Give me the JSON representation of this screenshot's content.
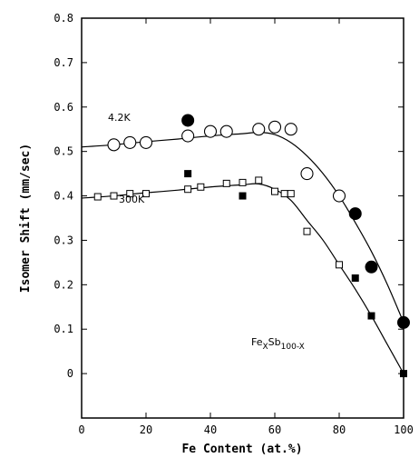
{
  "chart_data": {
    "type": "scatter",
    "title": "",
    "xlabel": "Fe Content (at.%)",
    "ylabel": "Isomer Shift (mm/sec)",
    "xlim": [
      0,
      100
    ],
    "ylim": [
      -0.1,
      0.8
    ],
    "x_ticks": [
      "0",
      "20",
      "40",
      "60",
      "80",
      "100"
    ],
    "y_ticks": [
      "0",
      "0.1",
      "0.2",
      "0.3",
      "0.4",
      "0.5",
      "0.6",
      "0.7",
      "0.8"
    ],
    "grid": false,
    "annotations": {
      "series_4k2": "4.2K",
      "series_300k": "300K",
      "formula_base1": "Fe",
      "formula_sub1": "X",
      "formula_base2": "Sb",
      "formula_sub2": "100-X"
    },
    "series": [
      {
        "name": "4.2K",
        "marker": "open-circle",
        "points": [
          [
            10,
            0.515
          ],
          [
            15,
            0.52
          ],
          [
            20,
            0.52
          ],
          [
            33,
            0.535
          ],
          [
            40,
            0.545
          ],
          [
            45,
            0.545
          ],
          [
            55,
            0.55
          ],
          [
            60,
            0.555
          ],
          [
            65,
            0.55
          ],
          [
            70,
            0.45
          ],
          [
            80,
            0.4
          ]
        ]
      },
      {
        "name": "4.2K",
        "marker": "filled-circle",
        "points": [
          [
            33,
            0.57
          ],
          [
            85,
            0.36
          ],
          [
            90,
            0.24
          ],
          [
            100,
            0.115
          ]
        ]
      },
      {
        "name": "300K",
        "marker": "open-square",
        "points": [
          [
            5,
            0.398
          ],
          [
            10,
            0.4
          ],
          [
            15,
            0.405
          ],
          [
            20,
            0.405
          ],
          [
            33,
            0.415
          ],
          [
            37,
            0.42
          ],
          [
            45,
            0.428
          ],
          [
            50,
            0.43
          ],
          [
            55,
            0.435
          ],
          [
            60,
            0.41
          ],
          [
            63,
            0.405
          ],
          [
            65,
            0.405
          ],
          [
            70,
            0.32
          ],
          [
            80,
            0.245
          ]
        ]
      },
      {
        "name": "300K",
        "marker": "filled-square",
        "points": [
          [
            33,
            0.45
          ],
          [
            50,
            0.4
          ],
          [
            85,
            0.215
          ],
          [
            90,
            0.13
          ],
          [
            100,
            0.0
          ]
        ]
      }
    ],
    "fit_curves": [
      {
        "name": "4.2K",
        "points": [
          [
            0,
            0.51
          ],
          [
            10,
            0.515
          ],
          [
            20,
            0.522
          ],
          [
            30,
            0.528
          ],
          [
            40,
            0.535
          ],
          [
            50,
            0.54
          ],
          [
            55,
            0.543
          ],
          [
            60,
            0.538
          ],
          [
            65,
            0.52
          ],
          [
            70,
            0.49
          ],
          [
            75,
            0.45
          ],
          [
            80,
            0.4
          ],
          [
            85,
            0.34
          ],
          [
            90,
            0.275
          ],
          [
            95,
            0.2
          ],
          [
            100,
            0.115
          ]
        ]
      },
      {
        "name": "300K",
        "points": [
          [
            0,
            0.395
          ],
          [
            10,
            0.4
          ],
          [
            20,
            0.407
          ],
          [
            30,
            0.413
          ],
          [
            40,
            0.42
          ],
          [
            50,
            0.425
          ],
          [
            55,
            0.427
          ],
          [
            60,
            0.415
          ],
          [
            65,
            0.39
          ],
          [
            70,
            0.345
          ],
          [
            75,
            0.3
          ],
          [
            80,
            0.245
          ],
          [
            85,
            0.19
          ],
          [
            90,
            0.13
          ],
          [
            95,
            0.065
          ],
          [
            100,
            0.0
          ]
        ]
      }
    ]
  }
}
